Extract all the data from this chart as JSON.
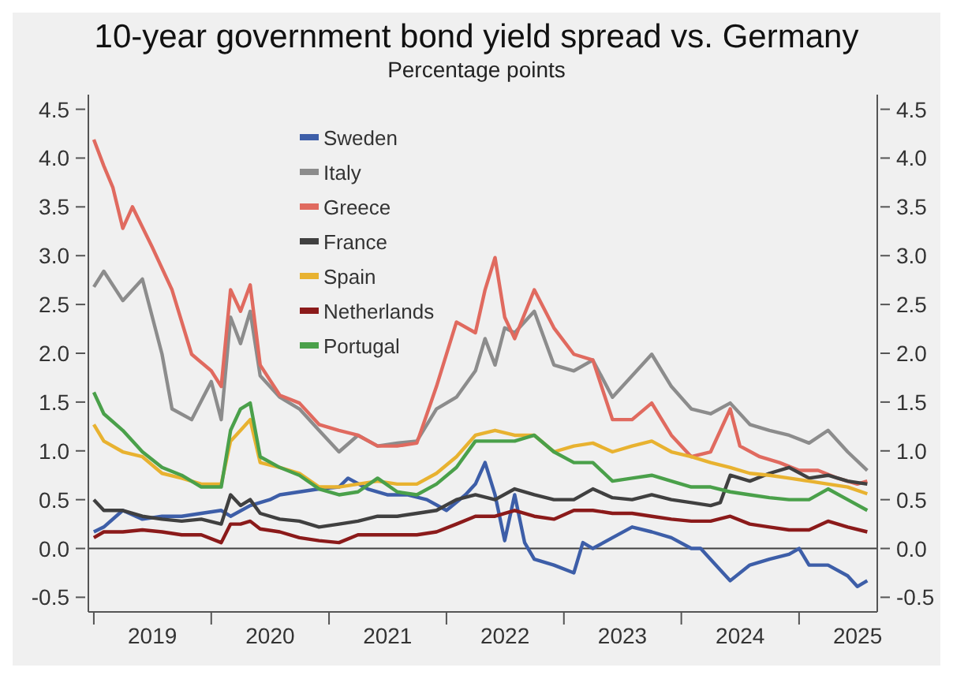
{
  "chart_data": {
    "type": "line",
    "title": "10-year government bond yield spread vs. Germany",
    "subtitle": "Percentage points",
    "xlim": [
      "2018-12-15",
      "2025-09-01"
    ],
    "xticks": [
      {
        "value": "2019-01-01",
        "label": null
      },
      {
        "value": "2019-07-02",
        "label": "2019"
      },
      {
        "value": "2020-01-01",
        "label": null
      },
      {
        "value": "2020-07-02",
        "label": "2020"
      },
      {
        "value": "2021-01-01",
        "label": null
      },
      {
        "value": "2021-07-02",
        "label": "2021"
      },
      {
        "value": "2022-01-01",
        "label": null
      },
      {
        "value": "2022-07-02",
        "label": "2022"
      },
      {
        "value": "2023-01-01",
        "label": null
      },
      {
        "value": "2023-07-02",
        "label": "2023"
      },
      {
        "value": "2024-01-01",
        "label": null
      },
      {
        "value": "2024-07-02",
        "label": "2024"
      },
      {
        "value": "2025-01-01",
        "label": null
      },
      {
        "value": "2025-07-02",
        "label": "2025"
      }
    ],
    "ylim": [
      -0.65,
      4.65
    ],
    "yticks": [
      {
        "value": -0.5,
        "label": "-0.5"
      },
      {
        "value": 0,
        "label": "0.0"
      },
      0.5,
      {
        "value": 1,
        "label": "1.0"
      },
      1.5,
      {
        "value": 2,
        "label": "2.0"
      },
      2.5,
      {
        "value": 3,
        "label": "3.0"
      },
      3.5,
      {
        "value": 4,
        "label": "4.0"
      },
      4.5
    ],
    "y2lim": [
      -0.65,
      4.65
    ],
    "y2ticks": [
      {
        "value": -0.5,
        "label": "-0.5"
      },
      {
        "value": 0,
        "label": "0.0"
      },
      0.5,
      {
        "value": 1,
        "label": "1.0"
      },
      1.5,
      {
        "value": 2,
        "label": "2.0"
      },
      2.5,
      {
        "value": 3,
        "label": "3.0"
      },
      3.5,
      {
        "value": 4,
        "label": "4.0"
      },
      4.5
    ],
    "ref_lines": [
      {
        "axis": "y",
        "value": 0,
        "label": null,
        "color": "#404040"
      }
    ],
    "grid": false,
    "legend": "top left",
    "marker": "none",
    "line_style": "solid",
    "series": [
      {
        "name": "Sweden",
        "color": "#3d5ea8",
        "x": [
          "2019-01",
          "2019-02",
          "2019-04",
          "2019-06",
          "2019-08",
          "2019-10",
          "2019-12",
          "2020-02",
          "2020-03",
          "2020-05",
          "2020-07",
          "2020-08",
          "2020-10",
          "2020-12",
          "2021-02",
          "2021-03",
          "2021-05",
          "2021-07",
          "2021-09",
          "2021-11",
          "2022-01",
          "2022-03",
          "2022-04",
          "2022-05",
          "2022-06",
          "2022-07",
          "2022-08",
          "2022-09",
          "2022-10",
          "2022-12",
          "2023-02",
          "2023-03",
          "2023-04",
          "2023-06",
          "2023-08",
          "2023-10",
          "2023-12",
          "2024-02",
          "2024-03",
          "2024-05",
          "2024-06",
          "2024-08",
          "2024-10",
          "2024-12",
          "2025-01",
          "2025-02",
          "2025-04",
          "2025-06",
          "2025-07",
          "2025-08"
        ],
        "values": [
          0.17,
          0.22,
          0.39,
          0.3,
          0.33,
          0.33,
          0.36,
          0.39,
          0.33,
          0.44,
          0.5,
          0.55,
          0.58,
          0.61,
          0.63,
          0.72,
          0.61,
          0.55,
          0.55,
          0.5,
          0.39,
          0.55,
          0.66,
          0.88,
          0.55,
          0.08,
          0.55,
          0.06,
          -0.11,
          -0.17,
          -0.25,
          0.06,
          0,
          0.11,
          0.22,
          0.17,
          0.11,
          0,
          0,
          -0.22,
          -0.33,
          -0.17,
          -0.11,
          -0.06,
          0,
          -0.17,
          -0.17,
          -0.28,
          -0.39,
          -0.33
        ]
      },
      {
        "name": "Italy",
        "color": "#8c8c8c",
        "x": [
          "2019-01",
          "2019-02",
          "2019-04",
          "2019-06",
          "2019-08",
          "2019-09",
          "2019-11",
          "2020-01",
          "2020-02",
          "2020-03",
          "2020-04",
          "2020-05",
          "2020-06",
          "2020-08",
          "2020-10",
          "2020-12",
          "2021-02",
          "2021-04",
          "2021-06",
          "2021-08",
          "2021-10",
          "2021-12",
          "2022-02",
          "2022-04",
          "2022-05",
          "2022-06",
          "2022-07",
          "2022-08",
          "2022-10",
          "2022-12",
          "2023-02",
          "2023-04",
          "2023-06",
          "2023-08",
          "2023-10",
          "2023-12",
          "2024-02",
          "2024-04",
          "2024-06",
          "2024-08",
          "2024-10",
          "2024-12",
          "2025-02",
          "2025-04",
          "2025-06",
          "2025-08"
        ],
        "values": [
          2.68,
          2.84,
          2.54,
          2.76,
          1.99,
          1.43,
          1.32,
          1.71,
          1.32,
          2.37,
          2.1,
          2.43,
          1.77,
          1.55,
          1.43,
          1.21,
          0.99,
          1.16,
          1.05,
          1.08,
          1.1,
          1.43,
          1.55,
          1.82,
          2.15,
          1.88,
          2.26,
          2.21,
          2.43,
          1.88,
          1.82,
          1.93,
          1.55,
          1.77,
          1.99,
          1.66,
          1.43,
          1.38,
          1.49,
          1.27,
          1.21,
          1.16,
          1.08,
          1.21,
          0.99,
          0.8
        ]
      },
      {
        "name": "Greece",
        "color": "#e06a5f",
        "x": [
          "2019-01",
          "2019-02",
          "2019-03",
          "2019-04",
          "2019-05",
          "2019-07",
          "2019-09",
          "2019-11",
          "2020-01",
          "2020-02",
          "2020-03",
          "2020-04",
          "2020-05",
          "2020-06",
          "2020-08",
          "2020-10",
          "2020-12",
          "2021-02",
          "2021-04",
          "2021-06",
          "2021-08",
          "2021-10",
          "2021-12",
          "2022-02",
          "2022-04",
          "2022-05",
          "2022-06",
          "2022-07",
          "2022-08",
          "2022-10",
          "2022-12",
          "2023-02",
          "2023-04",
          "2023-06",
          "2023-08",
          "2023-10",
          "2023-12",
          "2024-02",
          "2024-04",
          "2024-06",
          "2024-07",
          "2024-09",
          "2024-11",
          "2025-01",
          "2025-03",
          "2025-05",
          "2025-07",
          "2025-08"
        ],
        "values": [
          4.19,
          3.92,
          3.7,
          3.28,
          3.5,
          3.09,
          2.65,
          1.99,
          1.82,
          1.66,
          2.65,
          2.43,
          2.7,
          1.88,
          1.57,
          1.49,
          1.27,
          1.21,
          1.16,
          1.05,
          1.05,
          1.08,
          1.66,
          2.32,
          2.21,
          2.65,
          2.98,
          2.37,
          2.15,
          2.65,
          2.26,
          1.99,
          1.93,
          1.32,
          1.32,
          1.49,
          1.16,
          0.94,
          0.99,
          1.43,
          1.05,
          0.94,
          0.88,
          0.8,
          0.8,
          0.72,
          0.66,
          0.69
        ]
      },
      {
        "name": "France",
        "color": "#404040",
        "x": [
          "2019-01",
          "2019-02",
          "2019-04",
          "2019-06",
          "2019-08",
          "2019-10",
          "2019-12",
          "2020-02",
          "2020-03",
          "2020-04",
          "2020-05",
          "2020-06",
          "2020-08",
          "2020-10",
          "2020-12",
          "2021-02",
          "2021-04",
          "2021-06",
          "2021-08",
          "2021-10",
          "2021-12",
          "2022-02",
          "2022-04",
          "2022-06",
          "2022-08",
          "2022-10",
          "2022-12",
          "2023-02",
          "2023-04",
          "2023-06",
          "2023-08",
          "2023-10",
          "2023-12",
          "2024-02",
          "2024-04",
          "2024-05",
          "2024-06",
          "2024-08",
          "2024-10",
          "2024-12",
          "2025-02",
          "2025-04",
          "2025-06",
          "2025-08"
        ],
        "values": [
          0.5,
          0.39,
          0.39,
          0.33,
          0.3,
          0.28,
          0.3,
          0.25,
          0.55,
          0.44,
          0.5,
          0.36,
          0.3,
          0.28,
          0.22,
          0.25,
          0.28,
          0.33,
          0.33,
          0.36,
          0.39,
          0.5,
          0.55,
          0.5,
          0.61,
          0.55,
          0.5,
          0.5,
          0.61,
          0.52,
          0.5,
          0.55,
          0.5,
          0.47,
          0.44,
          0.47,
          0.75,
          0.69,
          0.77,
          0.83,
          0.72,
          0.75,
          0.69,
          0.66
        ]
      },
      {
        "name": "Spain",
        "color": "#e8b230",
        "x": [
          "2019-01",
          "2019-02",
          "2019-04",
          "2019-06",
          "2019-08",
          "2019-10",
          "2019-12",
          "2020-02",
          "2020-03",
          "2020-04",
          "2020-05",
          "2020-06",
          "2020-08",
          "2020-10",
          "2020-12",
          "2021-02",
          "2021-04",
          "2021-06",
          "2021-08",
          "2021-10",
          "2021-12",
          "2022-02",
          "2022-04",
          "2022-06",
          "2022-08",
          "2022-10",
          "2022-12",
          "2023-02",
          "2023-04",
          "2023-06",
          "2023-08",
          "2023-10",
          "2023-12",
          "2024-02",
          "2024-04",
          "2024-06",
          "2024-08",
          "2024-10",
          "2024-12",
          "2025-02",
          "2025-04",
          "2025-06",
          "2025-08"
        ],
        "values": [
          1.27,
          1.1,
          0.99,
          0.94,
          0.77,
          0.72,
          0.66,
          0.66,
          1.1,
          1.21,
          1.32,
          0.88,
          0.83,
          0.77,
          0.63,
          0.63,
          0.66,
          0.69,
          0.66,
          0.66,
          0.77,
          0.94,
          1.16,
          1.21,
          1.16,
          1.16,
          0.99,
          1.05,
          1.08,
          0.99,
          1.05,
          1.1,
          0.99,
          0.94,
          0.88,
          0.83,
          0.77,
          0.75,
          0.72,
          0.69,
          0.66,
          0.63,
          0.56
        ]
      },
      {
        "name": "Netherlands",
        "color": "#8b1a1a",
        "x": [
          "2019-01",
          "2019-02",
          "2019-04",
          "2019-06",
          "2019-08",
          "2019-10",
          "2019-12",
          "2020-02",
          "2020-03",
          "2020-04",
          "2020-05",
          "2020-06",
          "2020-08",
          "2020-10",
          "2020-12",
          "2021-02",
          "2021-04",
          "2021-06",
          "2021-08",
          "2021-10",
          "2021-12",
          "2022-02",
          "2022-04",
          "2022-06",
          "2022-08",
          "2022-10",
          "2022-12",
          "2023-02",
          "2023-04",
          "2023-06",
          "2023-08",
          "2023-10",
          "2023-12",
          "2024-02",
          "2024-04",
          "2024-06",
          "2024-08",
          "2024-10",
          "2024-12",
          "2025-02",
          "2025-04",
          "2025-06",
          "2025-08"
        ],
        "values": [
          0.11,
          0.17,
          0.17,
          0.19,
          0.17,
          0.14,
          0.14,
          0.06,
          0.25,
          0.25,
          0.28,
          0.2,
          0.17,
          0.11,
          0.08,
          0.06,
          0.14,
          0.14,
          0.14,
          0.14,
          0.17,
          0.25,
          0.33,
          0.33,
          0.39,
          0.33,
          0.3,
          0.39,
          0.39,
          0.36,
          0.36,
          0.33,
          0.3,
          0.28,
          0.28,
          0.33,
          0.25,
          0.22,
          0.19,
          0.19,
          0.28,
          0.22,
          0.17
        ]
      },
      {
        "name": "Portugal",
        "color": "#4aa04a",
        "x": [
          "2019-01",
          "2019-02",
          "2019-04",
          "2019-06",
          "2019-08",
          "2019-10",
          "2019-12",
          "2020-02",
          "2020-03",
          "2020-04",
          "2020-05",
          "2020-06",
          "2020-08",
          "2020-10",
          "2020-12",
          "2021-02",
          "2021-04",
          "2021-06",
          "2021-08",
          "2021-10",
          "2021-12",
          "2022-02",
          "2022-04",
          "2022-06",
          "2022-08",
          "2022-10",
          "2022-12",
          "2023-02",
          "2023-04",
          "2023-06",
          "2023-08",
          "2023-10",
          "2023-12",
          "2024-02",
          "2024-04",
          "2024-06",
          "2024-08",
          "2024-10",
          "2024-12",
          "2025-02",
          "2025-04",
          "2025-06",
          "2025-08"
        ],
        "values": [
          1.6,
          1.38,
          1.21,
          0.99,
          0.83,
          0.75,
          0.63,
          0.63,
          1.21,
          1.43,
          1.49,
          0.94,
          0.83,
          0.75,
          0.61,
          0.55,
          0.58,
          0.72,
          0.58,
          0.55,
          0.66,
          0.83,
          1.1,
          1.1,
          1.1,
          1.16,
          0.99,
          0.88,
          0.88,
          0.69,
          0.72,
          0.75,
          0.69,
          0.63,
          0.63,
          0.58,
          0.55,
          0.52,
          0.5,
          0.5,
          0.61,
          0.5,
          0.39
        ]
      }
    ]
  }
}
